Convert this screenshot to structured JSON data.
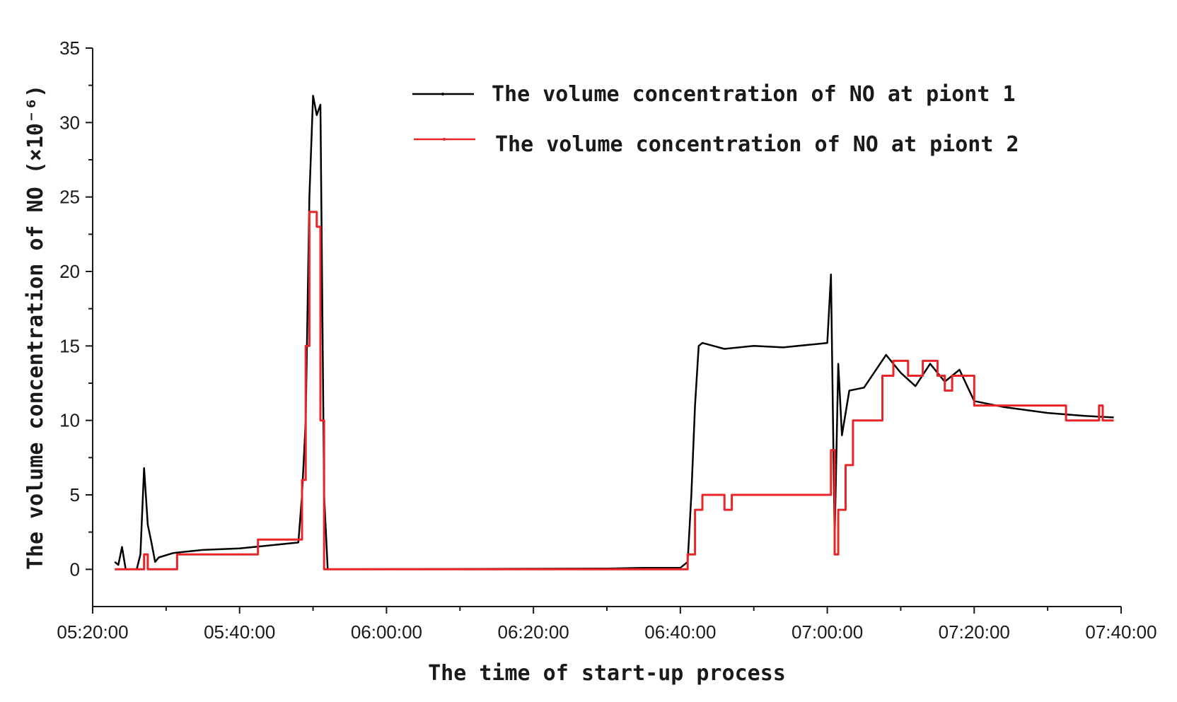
{
  "chart_data": {
    "type": "line",
    "xlabel": "The time of start-up process",
    "ylabel": "The volume concentration of NO (×10⁻⁶)",
    "xlim": [
      "05:20:00",
      "07:40:00"
    ],
    "ylim": [
      -2.5,
      35
    ],
    "x_ticks": [
      "05:20:00",
      "05:40:00",
      "06:00:00",
      "06:20:00",
      "06:40:00",
      "07:00:00",
      "07:20:00",
      "07:40:00"
    ],
    "y_ticks": [
      "0",
      "5",
      "10",
      "15",
      "20",
      "25",
      "30",
      "35"
    ],
    "y_tick_values": [
      0,
      5,
      10,
      15,
      20,
      25,
      30,
      35
    ],
    "grid": false,
    "legend_position": "top-right",
    "series": [
      {
        "name": "The volume concentration of NO at piont 1",
        "color": "#000000",
        "points": [
          [
            "05:23:00",
            0.5
          ],
          [
            "05:23:30",
            0.3
          ],
          [
            "05:24:00",
            1.5
          ],
          [
            "05:24:30",
            0.0
          ],
          [
            "05:26:00",
            0.0
          ],
          [
            "05:26:30",
            1.0
          ],
          [
            "05:27:00",
            6.8
          ],
          [
            "05:27:30",
            3.0
          ],
          [
            "05:28:00",
            1.8
          ],
          [
            "05:28:30",
            0.5
          ],
          [
            "05:29:00",
            0.8
          ],
          [
            "05:31:00",
            1.1
          ],
          [
            "05:35:00",
            1.3
          ],
          [
            "05:40:00",
            1.4
          ],
          [
            "05:44:00",
            1.6
          ],
          [
            "05:48:00",
            1.8
          ],
          [
            "05:48:30",
            5.0
          ],
          [
            "05:49:00",
            10.0
          ],
          [
            "05:49:30",
            25.0
          ],
          [
            "05:50:00",
            31.8
          ],
          [
            "05:50:30",
            30.5
          ],
          [
            "05:51:00",
            31.2
          ],
          [
            "05:51:30",
            5.0
          ],
          [
            "05:52:00",
            0.0
          ],
          [
            "06:30:00",
            0.05
          ],
          [
            "06:35:00",
            0.1
          ],
          [
            "06:40:00",
            0.1
          ],
          [
            "06:41:00",
            0.5
          ],
          [
            "06:41:30",
            5.0
          ],
          [
            "06:42:00",
            11.0
          ],
          [
            "06:42:30",
            15.0
          ],
          [
            "06:43:00",
            15.2
          ],
          [
            "06:46:00",
            14.8
          ],
          [
            "06:50:00",
            15.0
          ],
          [
            "06:54:00",
            14.9
          ],
          [
            "06:58:00",
            15.1
          ],
          [
            "07:00:00",
            15.2
          ],
          [
            "07:00:30",
            19.8
          ],
          [
            "07:01:00",
            2.0
          ],
          [
            "07:01:30",
            13.8
          ],
          [
            "07:02:00",
            9.0
          ],
          [
            "07:03:00",
            12.0
          ],
          [
            "07:05:00",
            12.2
          ],
          [
            "07:08:00",
            14.4
          ],
          [
            "07:10:00",
            13.2
          ],
          [
            "07:12:00",
            12.3
          ],
          [
            "07:14:00",
            13.8
          ],
          [
            "07:16:00",
            12.6
          ],
          [
            "07:18:00",
            13.4
          ],
          [
            "07:20:00",
            11.3
          ],
          [
            "07:24:00",
            10.9
          ],
          [
            "07:30:00",
            10.5
          ],
          [
            "07:35:00",
            10.3
          ],
          [
            "07:39:00",
            10.2
          ]
        ]
      },
      {
        "name": "The volume concentration of NO at piont 2",
        "color": "#e8262a",
        "points": [
          [
            "05:23:00",
            0.0
          ],
          [
            "05:26:30",
            0.0
          ],
          [
            "05:27:00",
            1.0
          ],
          [
            "05:27:30",
            0.0
          ],
          [
            "05:31:00",
            0.0
          ],
          [
            "05:31:30",
            1.0
          ],
          [
            "05:42:00",
            1.0
          ],
          [
            "05:42:30",
            2.0
          ],
          [
            "05:48:00",
            2.0
          ],
          [
            "05:48:30",
            6.0
          ],
          [
            "05:49:00",
            15.0
          ],
          [
            "05:49:30",
            24.0
          ],
          [
            "05:50:30",
            23.0
          ],
          [
            "05:51:00",
            10.0
          ],
          [
            "05:51:30",
            0.0
          ],
          [
            "06:40:00",
            0.0
          ],
          [
            "06:41:00",
            1.0
          ],
          [
            "06:42:00",
            4.0
          ],
          [
            "06:43:00",
            5.0
          ],
          [
            "06:46:00",
            4.0
          ],
          [
            "06:47:00",
            5.0
          ],
          [
            "07:00:00",
            5.0
          ],
          [
            "07:00:30",
            8.0
          ],
          [
            "07:01:00",
            1.0
          ],
          [
            "07:01:30",
            4.0
          ],
          [
            "07:02:30",
            7.0
          ],
          [
            "07:03:30",
            10.0
          ],
          [
            "07:07:00",
            10.0
          ],
          [
            "07:07:30",
            13.0
          ],
          [
            "07:09:00",
            14.0
          ],
          [
            "07:11:00",
            13.0
          ],
          [
            "07:13:00",
            14.0
          ],
          [
            "07:15:00",
            13.0
          ],
          [
            "07:16:00",
            12.0
          ],
          [
            "07:17:00",
            13.0
          ],
          [
            "07:20:00",
            11.0
          ],
          [
            "07:32:00",
            11.0
          ],
          [
            "07:32:30",
            10.0
          ],
          [
            "07:36:00",
            10.0
          ],
          [
            "07:37:00",
            11.0
          ],
          [
            "07:37:30",
            10.0
          ],
          [
            "07:39:00",
            10.0
          ]
        ]
      }
    ]
  }
}
